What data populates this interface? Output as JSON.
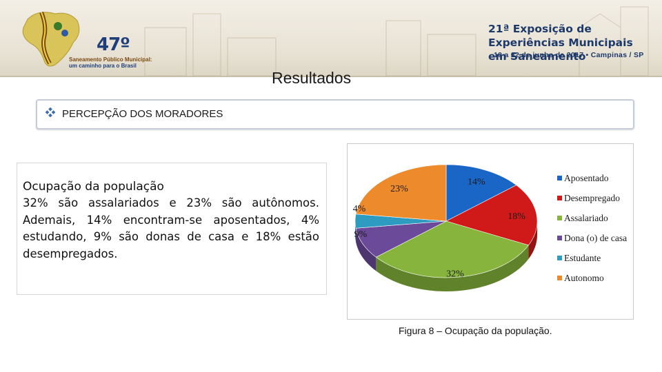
{
  "logo": {
    "number": "47º",
    "line1": "Saneamento Público Municipal:",
    "line2": "um caminho para o Brasil"
  },
  "event": {
    "title": "21ª Exposição de Experiências Municipais em Saneamento",
    "dates": "19 a 22 de junho de 2017 • Campinas / SP"
  },
  "slide": {
    "title": "Resultados",
    "section": "PERCEPÇÃO DOS MORADORES"
  },
  "textbox": {
    "heading": "Ocupação da população",
    "body": "32% são assalariados e 23% são autônomos. Ademais, 14% encontram-se aposentados, 4% estudando, 9% são donas de casa e 18% estão desempregados."
  },
  "caption": "Figura 8 – Ocupação da população.",
  "colors": {
    "brand": "#1d3969",
    "bullet": "#3b6db0"
  },
  "chart_data": {
    "type": "pie",
    "title": "",
    "categories": [
      "Aposentado",
      "Desempregado",
      "Assalariado",
      "Dona (o) de casa",
      "Estudante",
      "Autonomo"
    ],
    "values": [
      14,
      18,
      32,
      9,
      4,
      23
    ],
    "labels": [
      "14%",
      "18%",
      "32%",
      "9%",
      "4%",
      "23%"
    ],
    "colors": [
      "#1a66c6",
      "#d01a1a",
      "#86b43c",
      "#6b4a9a",
      "#2e9bc0",
      "#ed8a2c"
    ],
    "legend_position": "right",
    "style": "3d"
  }
}
